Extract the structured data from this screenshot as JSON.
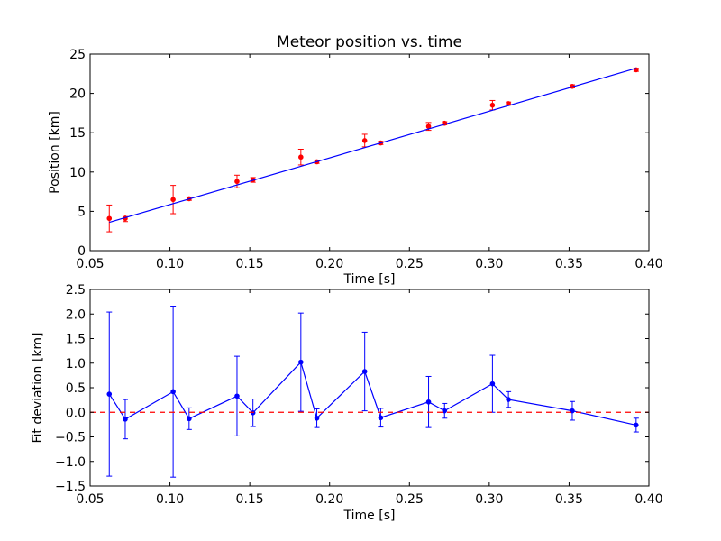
{
  "chart_data": [
    {
      "type": "scatter",
      "title": "Meteor position vs. time",
      "xlabel": "Time [s]",
      "ylabel": "Position [km]",
      "xlim": [
        0.05,
        0.4
      ],
      "ylim": [
        0,
        25
      ],
      "xticks": [
        0.05,
        0.1,
        0.15,
        0.2,
        0.25,
        0.3,
        0.35,
        0.4
      ],
      "xtick_labels": [
        "0.05",
        "0.10",
        "0.15",
        "0.20",
        "0.25",
        "0.30",
        "0.35",
        "0.40"
      ],
      "yticks": [
        0,
        5,
        10,
        15,
        20,
        25
      ],
      "ytick_labels": [
        "0",
        "5",
        "10",
        "15",
        "20",
        "25"
      ],
      "grid": false,
      "series": [
        {
          "kind": "points-with-errorbars",
          "color": "#ff0000",
          "x": [
            0.062,
            0.072,
            0.102,
            0.112,
            0.142,
            0.152,
            0.182,
            0.192,
            0.222,
            0.232,
            0.262,
            0.272,
            0.302,
            0.312,
            0.352,
            0.392
          ],
          "y": [
            4.1,
            4.1,
            6.5,
            6.6,
            8.8,
            9.0,
            11.9,
            11.3,
            14.0,
            13.7,
            15.8,
            16.2,
            18.5,
            18.7,
            20.9,
            23.0
          ],
          "yerr": [
            1.7,
            0.4,
            1.8,
            0.2,
            0.8,
            0.3,
            1.0,
            0.2,
            0.8,
            0.2,
            0.5,
            0.2,
            0.6,
            0.2,
            0.2,
            0.2
          ]
        },
        {
          "kind": "fit-line",
          "color": "#0000ff",
          "x": [
            0.062,
            0.392
          ],
          "y": [
            3.6,
            23.2
          ]
        }
      ]
    },
    {
      "type": "line",
      "title": "",
      "xlabel": "Time [s]",
      "ylabel": "Fit deviation [km]",
      "xlim": [
        0.05,
        0.4
      ],
      "ylim": [
        -1.5,
        2.5
      ],
      "xticks": [
        0.05,
        0.1,
        0.15,
        0.2,
        0.25,
        0.3,
        0.35,
        0.4
      ],
      "xtick_labels": [
        "0.05",
        "0.10",
        "0.15",
        "0.20",
        "0.25",
        "0.30",
        "0.35",
        "0.40"
      ],
      "yticks": [
        -1.5,
        -1.0,
        -0.5,
        0.0,
        0.5,
        1.0,
        1.5,
        2.0,
        2.5
      ],
      "ytick_labels": [
        "−1.5",
        "−1.0",
        "−0.5",
        "0.0",
        "0.5",
        "1.0",
        "1.5",
        "2.0",
        "2.5"
      ],
      "grid": false,
      "series": [
        {
          "kind": "line-with-errorbars",
          "color": "#0000ff",
          "x": [
            0.062,
            0.072,
            0.102,
            0.112,
            0.142,
            0.152,
            0.182,
            0.192,
            0.222,
            0.232,
            0.262,
            0.272,
            0.302,
            0.312,
            0.352,
            0.392
          ],
          "y": [
            0.37,
            -0.14,
            0.42,
            -0.13,
            0.33,
            -0.01,
            1.02,
            -0.12,
            0.83,
            -0.11,
            0.21,
            0.03,
            0.58,
            0.26,
            0.03,
            -0.26
          ],
          "yerr": [
            1.67,
            0.4,
            1.74,
            0.22,
            0.81,
            0.28,
            1.0,
            0.19,
            0.8,
            0.19,
            0.52,
            0.15,
            0.58,
            0.16,
            0.19,
            0.14
          ]
        },
        {
          "kind": "reference-line",
          "color": "#ff0000",
          "style": "dashed",
          "y": 0
        }
      ]
    }
  ]
}
